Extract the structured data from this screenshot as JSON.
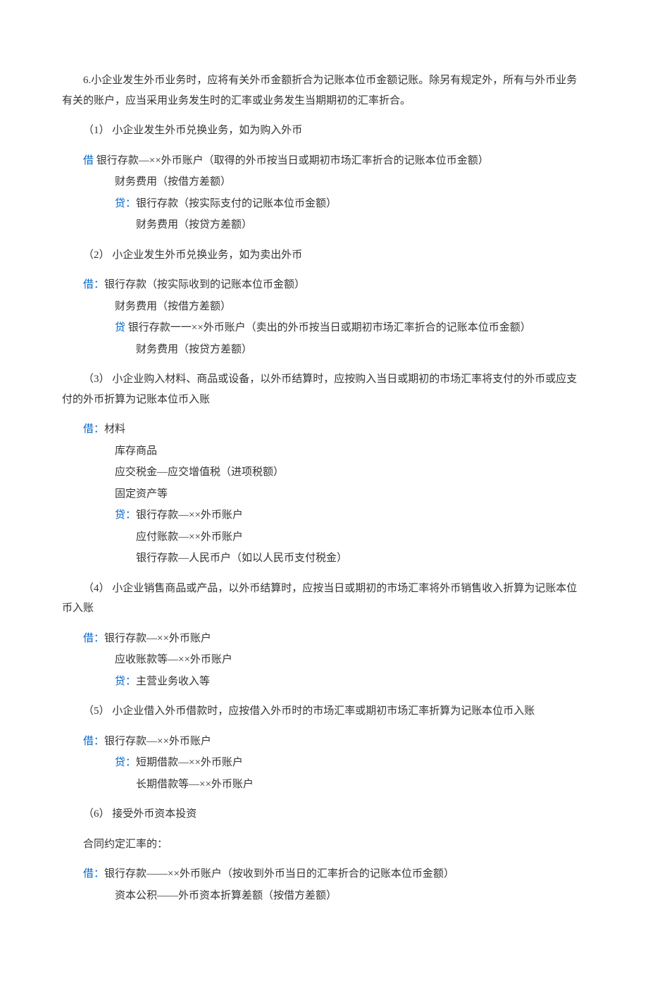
{
  "text_color": "#333333",
  "accent_color": "#0066cc",
  "background_color": "#ffffff",
  "font_family": "SimSun",
  "font_size_pt": 11,
  "intro": "6.小企业发生外币业务时，应将有关外币金额折合为记账本位币金额记账。除另有规定外，所有与外币业务有关的账户，应当采用业务发生时的汇率或业务发生当期期初的汇率折合。",
  "s1": {
    "heading": "（1）  小企业发生外币兑换业务，如为购入外币",
    "l1_kw": "借",
    "l1_txt": " 银行存款—××外币账户（取得的外币按当日或期初市场汇率折合的记账本位币金额）",
    "l2": "财务费用（按借方差额）",
    "l3_kw": "贷：",
    "l3_txt": "银行存款（按实际支付的记账本位币金额）",
    "l4": "财务费用（按贷方差额）"
  },
  "s2": {
    "heading": "（2）  小企业发生外币兑换业务，如为卖出外币",
    "l1_kw": "借：",
    "l1_txt": "银行存款（按实际收到的记账本位币金额）",
    "l2": "财务费用（按借方差额）",
    "l3_kw": "贷",
    "l3_txt": " 银行存款一一××外币账户（卖出的外币按当日或期初市场汇率折合的记账本位币金额）",
    "l4": "财务费用（按贷方差额）"
  },
  "s3": {
    "heading": "（3）  小企业购入材料、商品或设备，以外币结算时，应按购入当日或期初的市场汇率将支付的外币或应支付的外币折算为记账本位币入账",
    "l1_kw": "借：",
    "l1_txt": "材料",
    "l2": "库存商品",
    "l3": "应交税金—应交增值税（进项税额）",
    "l4": "固定资产等",
    "l5_kw": "贷：",
    "l5_txt": "银行存款—××外币账户",
    "l6": "应付账款—××外币账户",
    "l7": "银行存款—人民币户（如以人民币支付税金）"
  },
  "s4": {
    "heading": "（4）  小企业销售商品或产品，以外币结算时，应按当日或期初的市场汇率将外币销售收入折算为记账本位币入账",
    "l1_kw": "借：",
    "l1_txt": "银行存款—××外币账户",
    "l2": "应收账款等—××外币账户",
    "l3_kw": "贷：",
    "l3_txt": "主营业务收入等"
  },
  "s5": {
    "heading": "（5）  小企业借入外币借款时，应按借入外币时的市场汇率或期初市场汇率折算为记账本位币入账",
    "l1_kw": "借：",
    "l1_txt": "银行存款—××外币账户",
    "l2_kw": "贷：",
    "l2_txt": "短期借款—××外币账户",
    "l3": "长期借款等—××外币账户"
  },
  "s6": {
    "heading": "（6）  接受外币资本投资",
    "sub": "合同约定汇率的：",
    "l1_kw": "借：",
    "l1_txt": "银行存款——××外币账户（按收到外币当日的汇率折合的记账本位币金额）",
    "l2": "资本公积——外币资本折算差额（按借方差额）"
  }
}
